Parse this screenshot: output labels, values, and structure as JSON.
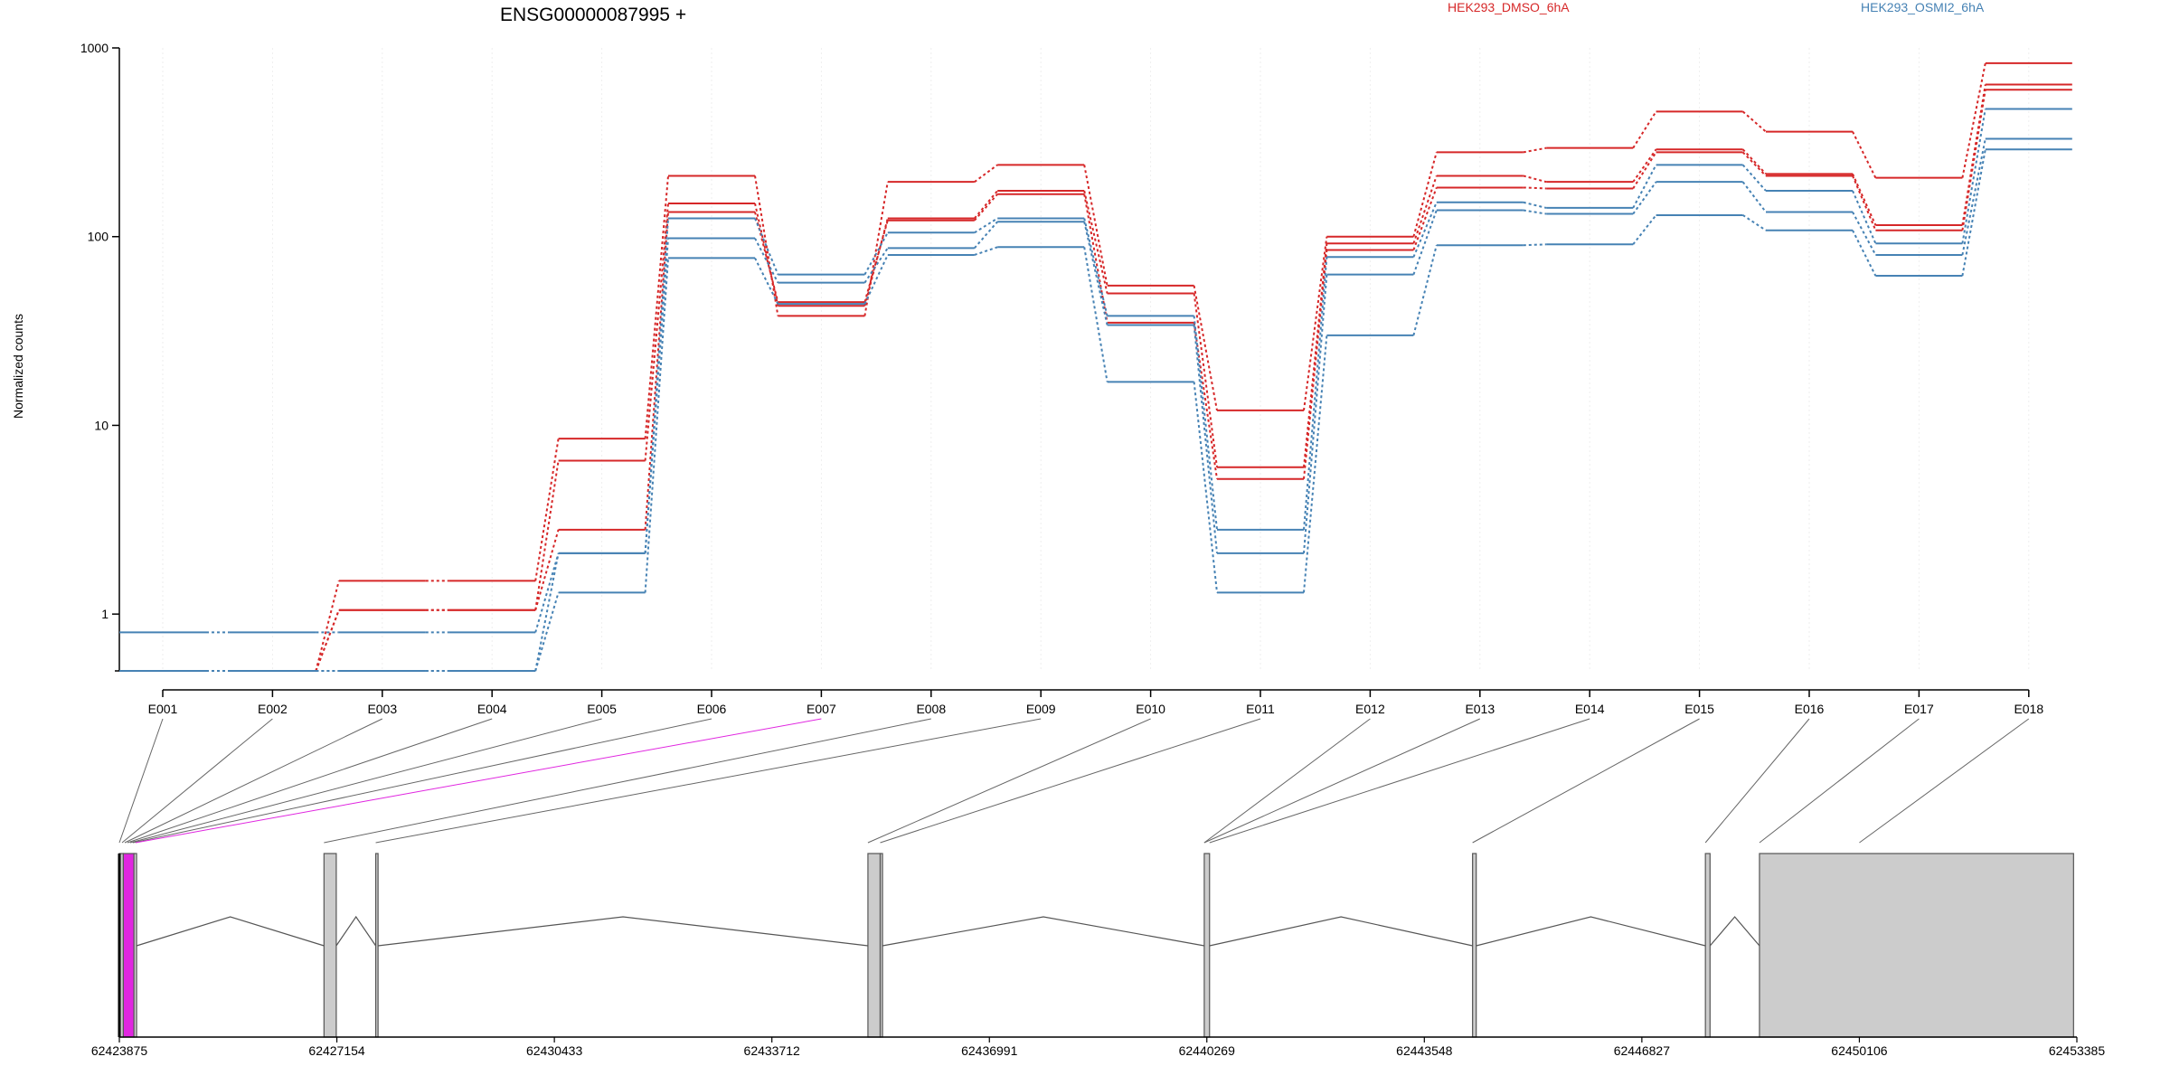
{
  "chart_data": {
    "type": "line",
    "title": "ENSG00000087995 +",
    "ylabel": "Normalized counts",
    "xlabel": "",
    "y_scale": "log",
    "ylim": [
      0.5,
      1000
    ],
    "y_ticks": [
      "1",
      "10",
      "100",
      "1000"
    ],
    "grid": true,
    "legend_placement": "top",
    "exons": [
      "E001",
      "E002",
      "E003",
      "E004",
      "E005",
      "E006",
      "E007",
      "E008",
      "E009",
      "E010",
      "E011",
      "E012",
      "E013",
      "E014",
      "E015",
      "E016",
      "E017",
      "E018"
    ],
    "series": [
      {
        "name": "HEK293_DMSO_6hA",
        "color": "#d62728",
        "values": [
          0.5,
          0.5,
          1.5,
          1.5,
          8.5,
          210,
          38,
          195,
          240,
          55,
          12,
          100,
          280,
          295,
          460,
          360,
          205,
          830
        ]
      },
      {
        "name": "HEK293_DMSO_6hA",
        "color": "#d62728",
        "values": [
          0.5,
          0.5,
          1.05,
          1.05,
          6.5,
          150,
          43,
          125,
          175,
          50,
          6,
          92,
          210,
          195,
          290,
          215,
          115,
          640
        ]
      },
      {
        "name": "HEK293_DMSO_6hA",
        "color": "#d62728",
        "values": [
          0.5,
          0.5,
          1.05,
          1.05,
          2.8,
          135,
          45,
          122,
          168,
          35,
          5.2,
          85,
          182,
          180,
          280,
          210,
          108,
          600
        ]
      },
      {
        "name": "HEK293_OSMI2_6hA",
        "color": "#4682b4",
        "values": [
          0.8,
          0.8,
          0.8,
          0.8,
          2.1,
          125,
          63,
          105,
          125,
          38,
          2.8,
          78,
          152,
          142,
          240,
          175,
          92,
          475
        ]
      },
      {
        "name": "HEK293_OSMI2_6hA",
        "color": "#4682b4",
        "values": [
          0.5,
          0.5,
          0.5,
          0.5,
          2.1,
          98,
          57,
          87,
          120,
          34,
          2.1,
          63,
          138,
          132,
          195,
          135,
          80,
          330
        ]
      },
      {
        "name": "HEK293_OSMI2_6hA",
        "color": "#4682b4",
        "values": [
          0.5,
          0.5,
          0.5,
          0.5,
          1.3,
          77,
          44,
          80,
          88,
          17,
          1.3,
          30,
          90,
          91,
          130,
          108,
          62,
          290
        ]
      }
    ],
    "legend": [
      {
        "label": "HEK293_DMSO_6hA",
        "color": "#d62728"
      },
      {
        "label": "HEK293_OSMI2_6hA",
        "color": "#4682b4"
      }
    ],
    "gene_model": {
      "coordinate_ticks": [
        "62423875",
        "62427154",
        "62430433",
        "62433712",
        "62436991",
        "62440269",
        "62443548",
        "62446827",
        "62450106",
        "62453385"
      ],
      "highlighted_exon": "E007",
      "highlight_color": "#e026e0",
      "exon_color": "#cccccc"
    }
  }
}
